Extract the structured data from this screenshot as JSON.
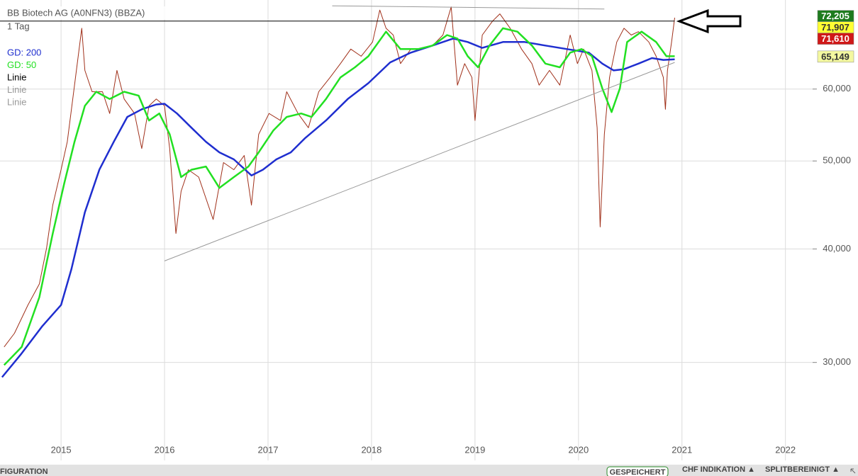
{
  "chart_data": {
    "type": "line",
    "title": "BB Biotech AG (A0NFN3) (BBZA)",
    "subtitle": "1 Tag",
    "log_scale": true,
    "grid": true,
    "xlim": [
      2014.41,
      2022.29
    ],
    "xticks": [
      2015,
      2016,
      2017,
      2018,
      2019,
      2020,
      2021,
      2022
    ],
    "ylim": [
      23.4,
      75.2
    ],
    "yticks": [
      {
        "value": 30,
        "label": "30,000"
      },
      {
        "value": 40,
        "label": "40,000"
      },
      {
        "value": 50,
        "label": "50,000"
      },
      {
        "value": 60,
        "label": "60,000"
      }
    ],
    "series": [
      {
        "color": "#a0301a",
        "width": 1,
        "x": [
          2014.45,
          2014.55,
          2014.68,
          2014.79,
          2014.86,
          2014.92,
          2015.0,
          2015.06,
          2015.13,
          2015.2,
          2015.23,
          2015.3,
          2015.4,
          2015.47,
          2015.54,
          2015.61,
          2015.71,
          2015.78,
          2015.85,
          2015.92,
          2016.0,
          2016.05,
          2016.11,
          2016.16,
          2016.23,
          2016.33,
          2016.47,
          2016.57,
          2016.67,
          2016.77,
          2016.84,
          2016.91,
          2017.01,
          2017.12,
          2017.18,
          2017.29,
          2017.39,
          2017.49,
          2017.6,
          2017.7,
          2017.8,
          2017.9,
          2018.01,
          2018.08,
          2018.14,
          2018.21,
          2018.28,
          2018.38,
          2018.49,
          2018.59,
          2018.69,
          2018.77,
          2018.83,
          2018.9,
          2018.97,
          2019.0,
          2019.07,
          2019.17,
          2019.24,
          2019.34,
          2019.45,
          2019.55,
          2019.62,
          2019.72,
          2019.82,
          2019.92,
          2019.99,
          2020.05,
          2020.13,
          2020.18,
          2020.21,
          2020.25,
          2020.3,
          2020.37,
          2020.44,
          2020.51,
          2020.58,
          2020.68,
          2020.75,
          2020.82,
          2020.84,
          2020.86,
          2020.9,
          2020.93
        ],
        "values": [
          31.2,
          32.3,
          34.7,
          36.6,
          40.1,
          44.7,
          48.9,
          52.5,
          60.6,
          70.0,
          62.9,
          59.6,
          59.6,
          56.4,
          62.9,
          58.5,
          56.4,
          51.6,
          57.5,
          58.5,
          57.5,
          51.6,
          41.6,
          46.3,
          48.9,
          48.0,
          43.1,
          49.8,
          48.9,
          50.7,
          44.7,
          53.5,
          56.4,
          55.4,
          59.6,
          56.4,
          54.4,
          59.6,
          61.8,
          64.0,
          66.4,
          65.2,
          67.6,
          73.3,
          70.0,
          68.8,
          64.0,
          66.4,
          66.4,
          67.0,
          68.8,
          73.9,
          60.6,
          64.0,
          61.8,
          55.4,
          68.8,
          71.3,
          72.6,
          70.0,
          66.4,
          64.0,
          60.6,
          62.9,
          60.6,
          68.8,
          64.0,
          66.4,
          62.9,
          54.4,
          42.3,
          53.5,
          61.8,
          67.6,
          70.0,
          68.8,
          69.4,
          67.6,
          65.2,
          61.8,
          57.0,
          62.9,
          67.6,
          71.9
        ]
      },
      {
        "name": "GD: 200",
        "color": "#1f2ecf",
        "width": 2.5,
        "x": [
          2014.43,
          2014.61,
          2014.82,
          2015.0,
          2015.1,
          2015.23,
          2015.37,
          2015.51,
          2015.64,
          2015.78,
          2015.92,
          2016.0,
          2016.12,
          2016.26,
          2016.4,
          2016.53,
          2016.67,
          2016.84,
          2016.95,
          2017.08,
          2017.22,
          2017.36,
          2017.56,
          2017.77,
          2017.97,
          2018.18,
          2018.38,
          2018.59,
          2018.79,
          2018.93,
          2019.07,
          2019.27,
          2019.48,
          2019.68,
          2019.89,
          2020.1,
          2020.23,
          2020.34,
          2020.44,
          2020.58,
          2020.71,
          2020.82,
          2020.93
        ],
        "values": [
          28.9,
          30.6,
          32.9,
          34.7,
          38.0,
          43.9,
          48.9,
          52.5,
          55.9,
          57.0,
          57.7,
          57.8,
          56.4,
          54.4,
          52.5,
          51.1,
          50.2,
          48.2,
          48.9,
          50.2,
          51.1,
          53.0,
          55.4,
          58.5,
          60.9,
          64.2,
          65.8,
          67.0,
          68.2,
          67.6,
          66.6,
          67.6,
          67.6,
          67.0,
          66.4,
          65.8,
          64.0,
          62.9,
          63.1,
          64.0,
          64.9,
          64.6,
          64.7
        ]
      },
      {
        "name": "GD: 50",
        "color": "#22e022",
        "width": 2.5,
        "x": [
          2014.45,
          2014.62,
          2014.79,
          2014.92,
          2015.03,
          2015.13,
          2015.23,
          2015.34,
          2015.47,
          2015.61,
          2015.75,
          2015.85,
          2015.95,
          2016.05,
          2016.16,
          2016.26,
          2016.4,
          2016.53,
          2016.67,
          2016.81,
          2016.91,
          2017.05,
          2017.18,
          2017.32,
          2017.42,
          2017.56,
          2017.7,
          2017.84,
          2017.97,
          2018.14,
          2018.28,
          2018.45,
          2018.59,
          2018.73,
          2018.83,
          2018.93,
          2019.03,
          2019.14,
          2019.27,
          2019.41,
          2019.55,
          2019.68,
          2019.82,
          2019.92,
          2020.03,
          2020.13,
          2020.23,
          2020.32,
          2020.4,
          2020.47,
          2020.61,
          2020.75,
          2020.85,
          2020.93
        ],
        "values": [
          29.8,
          31.2,
          35.4,
          41.6,
          47.2,
          52.5,
          57.5,
          59.6,
          58.5,
          59.6,
          59.0,
          55.4,
          56.4,
          53.5,
          48.0,
          48.9,
          49.3,
          46.7,
          48.0,
          49.3,
          51.1,
          54.0,
          55.9,
          56.4,
          55.9,
          58.5,
          61.8,
          63.4,
          65.2,
          69.4,
          66.4,
          66.4,
          67.0,
          68.8,
          68.2,
          65.2,
          63.4,
          67.0,
          70.0,
          69.4,
          67.0,
          64.0,
          63.4,
          65.8,
          66.4,
          65.2,
          60.1,
          56.6,
          60.1,
          67.6,
          69.4,
          67.6,
          65.2,
          65.2
        ]
      },
      {
        "name": "Linie",
        "color": "#000000",
        "width": 1,
        "x": [
          2014.41,
          2020.93
        ],
        "values": [
          71.3,
          71.3
        ]
      },
      {
        "name": "Linie",
        "color": "#999999",
        "width": 1,
        "x": [
          2016.0,
          2020.93
        ],
        "values": [
          38.8,
          64.2
        ]
      },
      {
        "name": "Linie",
        "color": "#999999",
        "width": 1,
        "x": [
          2017.62,
          2020.25
        ],
        "values": [
          74.1,
          73.5
        ]
      }
    ],
    "price_labels": [
      {
        "value": 72.205,
        "label": "72,205",
        "color": "#1e7b1e",
        "text_color": "#ffffff"
      },
      {
        "value": 71.907,
        "label": "71,907",
        "color": "#ffff33",
        "text_color": "#333333"
      },
      {
        "value": 71.61,
        "label": "71,610",
        "color": "#d01818",
        "text_color": "#ffffff"
      },
      {
        "value": 65.149,
        "label": "65,149",
        "color": "#f4f8a0",
        "text_color": "#333333"
      }
    ]
  },
  "toolbar": {
    "left": "FIGURATION",
    "saved": "GESPEICHERT",
    "currency": "CHF INDIKATION ▲",
    "split": "SPLITBEREINIGT ▲"
  }
}
